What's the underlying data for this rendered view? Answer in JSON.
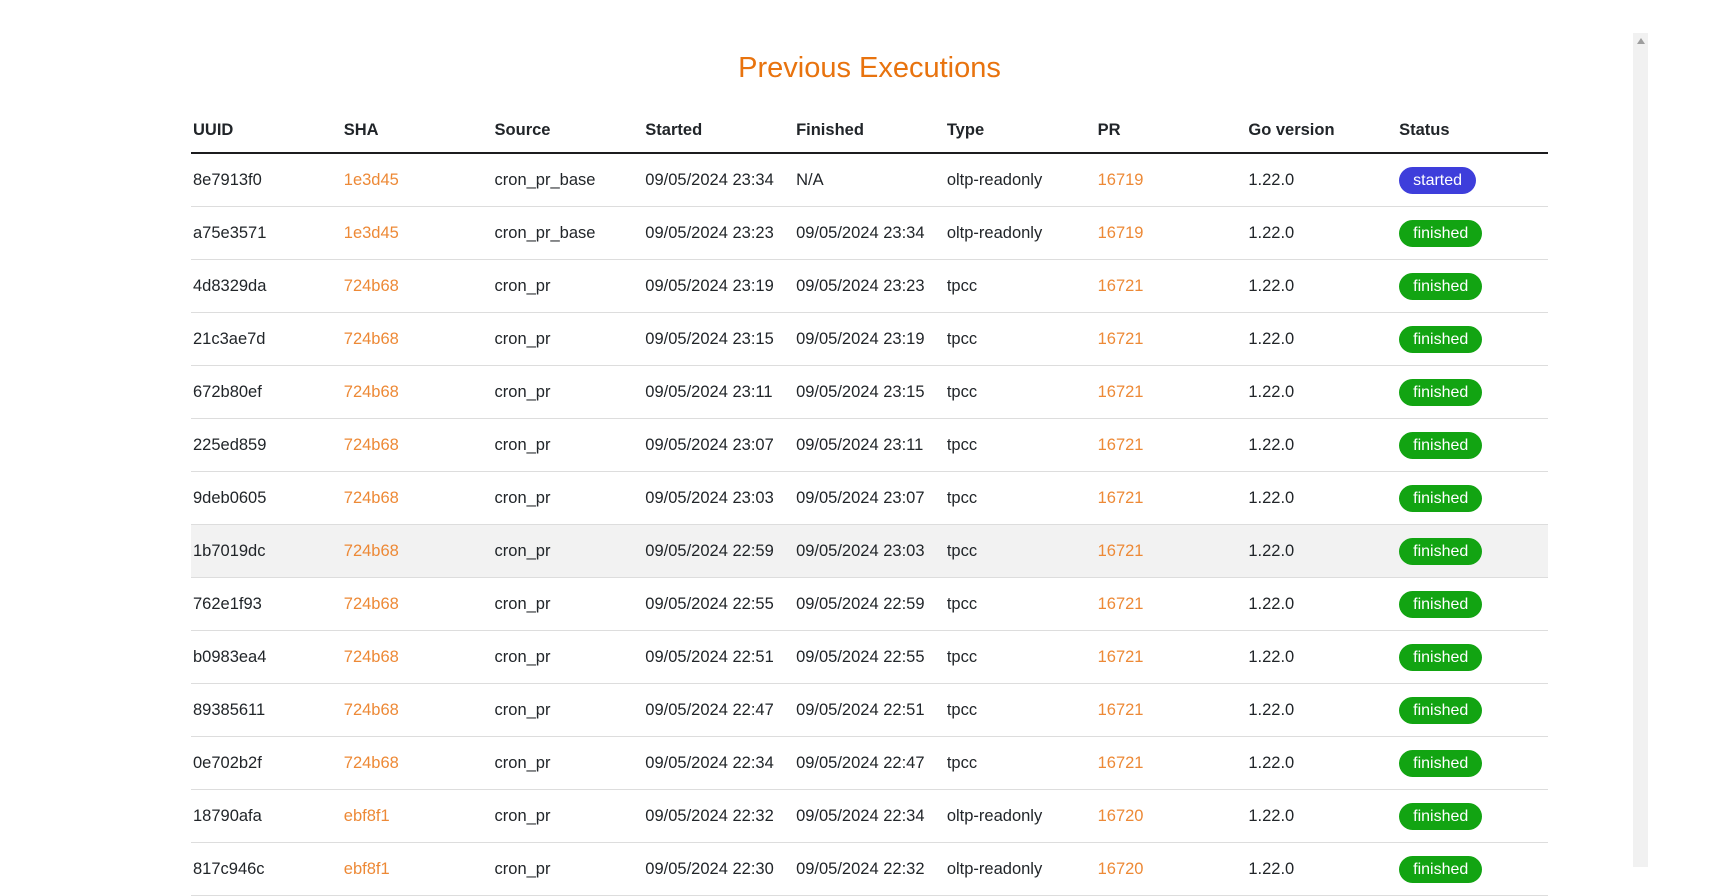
{
  "page": {
    "title": "Previous Executions"
  },
  "colors": {
    "background": "#FFFFFF",
    "title": "#E8730E",
    "link": "#ED8936",
    "text": "#212529",
    "header_border": "#1C1C1E",
    "row_divider": "#DDDDDD",
    "row_highlight": "#F2F2F2",
    "badge_started": "#3E3EDB",
    "badge_finished": "#12A412",
    "badge_text": "#FFFFFF",
    "scrollbar_track": "#F1F1F1",
    "scrollbar_arrow": "#9E9E9E"
  },
  "table": {
    "columns": [
      "UUID",
      "SHA",
      "Source",
      "Started",
      "Finished",
      "Type",
      "PR",
      "Go version",
      "Status"
    ],
    "rows": [
      {
        "uuid": "8e7913f0",
        "sha": "1e3d45",
        "source": "cron_pr_base",
        "started": "09/05/2024 23:34",
        "finished": "N/A",
        "type": "oltp-readonly",
        "pr": "16719",
        "go_version": "1.22.0",
        "status": "started",
        "highlighted": false
      },
      {
        "uuid": "a75e3571",
        "sha": "1e3d45",
        "source": "cron_pr_base",
        "started": "09/05/2024 23:23",
        "finished": "09/05/2024 23:34",
        "type": "oltp-readonly",
        "pr": "16719",
        "go_version": "1.22.0",
        "status": "finished",
        "highlighted": false
      },
      {
        "uuid": "4d8329da",
        "sha": "724b68",
        "source": "cron_pr",
        "started": "09/05/2024 23:19",
        "finished": "09/05/2024 23:23",
        "type": "tpcc",
        "pr": "16721",
        "go_version": "1.22.0",
        "status": "finished",
        "highlighted": false
      },
      {
        "uuid": "21c3ae7d",
        "sha": "724b68",
        "source": "cron_pr",
        "started": "09/05/2024 23:15",
        "finished": "09/05/2024 23:19",
        "type": "tpcc",
        "pr": "16721",
        "go_version": "1.22.0",
        "status": "finished",
        "highlighted": false
      },
      {
        "uuid": "672b80ef",
        "sha": "724b68",
        "source": "cron_pr",
        "started": "09/05/2024 23:11",
        "finished": "09/05/2024 23:15",
        "type": "tpcc",
        "pr": "16721",
        "go_version": "1.22.0",
        "status": "finished",
        "highlighted": false
      },
      {
        "uuid": "225ed859",
        "sha": "724b68",
        "source": "cron_pr",
        "started": "09/05/2024 23:07",
        "finished": "09/05/2024 23:11",
        "type": "tpcc",
        "pr": "16721",
        "go_version": "1.22.0",
        "status": "finished",
        "highlighted": false
      },
      {
        "uuid": "9deb0605",
        "sha": "724b68",
        "source": "cron_pr",
        "started": "09/05/2024 23:03",
        "finished": "09/05/2024 23:07",
        "type": "tpcc",
        "pr": "16721",
        "go_version": "1.22.0",
        "status": "finished",
        "highlighted": false
      },
      {
        "uuid": "1b7019dc",
        "sha": "724b68",
        "source": "cron_pr",
        "started": "09/05/2024 22:59",
        "finished": "09/05/2024 23:03",
        "type": "tpcc",
        "pr": "16721",
        "go_version": "1.22.0",
        "status": "finished",
        "highlighted": true
      },
      {
        "uuid": "762e1f93",
        "sha": "724b68",
        "source": "cron_pr",
        "started": "09/05/2024 22:55",
        "finished": "09/05/2024 22:59",
        "type": "tpcc",
        "pr": "16721",
        "go_version": "1.22.0",
        "status": "finished",
        "highlighted": false
      },
      {
        "uuid": "b0983ea4",
        "sha": "724b68",
        "source": "cron_pr",
        "started": "09/05/2024 22:51",
        "finished": "09/05/2024 22:55",
        "type": "tpcc",
        "pr": "16721",
        "go_version": "1.22.0",
        "status": "finished",
        "highlighted": false
      },
      {
        "uuid": "89385611",
        "sha": "724b68",
        "source": "cron_pr",
        "started": "09/05/2024 22:47",
        "finished": "09/05/2024 22:51",
        "type": "tpcc",
        "pr": "16721",
        "go_version": "1.22.0",
        "status": "finished",
        "highlighted": false
      },
      {
        "uuid": "0e702b2f",
        "sha": "724b68",
        "source": "cron_pr",
        "started": "09/05/2024 22:34",
        "finished": "09/05/2024 22:47",
        "type": "tpcc",
        "pr": "16721",
        "go_version": "1.22.0",
        "status": "finished",
        "highlighted": false
      },
      {
        "uuid": "18790afa",
        "sha": "ebf8f1",
        "source": "cron_pr",
        "started": "09/05/2024 22:32",
        "finished": "09/05/2024 22:34",
        "type": "oltp-readonly",
        "pr": "16720",
        "go_version": "1.22.0",
        "status": "finished",
        "highlighted": false
      },
      {
        "uuid": "817c946c",
        "sha": "ebf8f1",
        "source": "cron_pr",
        "started": "09/05/2024 22:30",
        "finished": "09/05/2024 22:32",
        "type": "oltp-readonly",
        "pr": "16720",
        "go_version": "1.22.0",
        "status": "finished",
        "highlighted": false
      }
    ]
  }
}
